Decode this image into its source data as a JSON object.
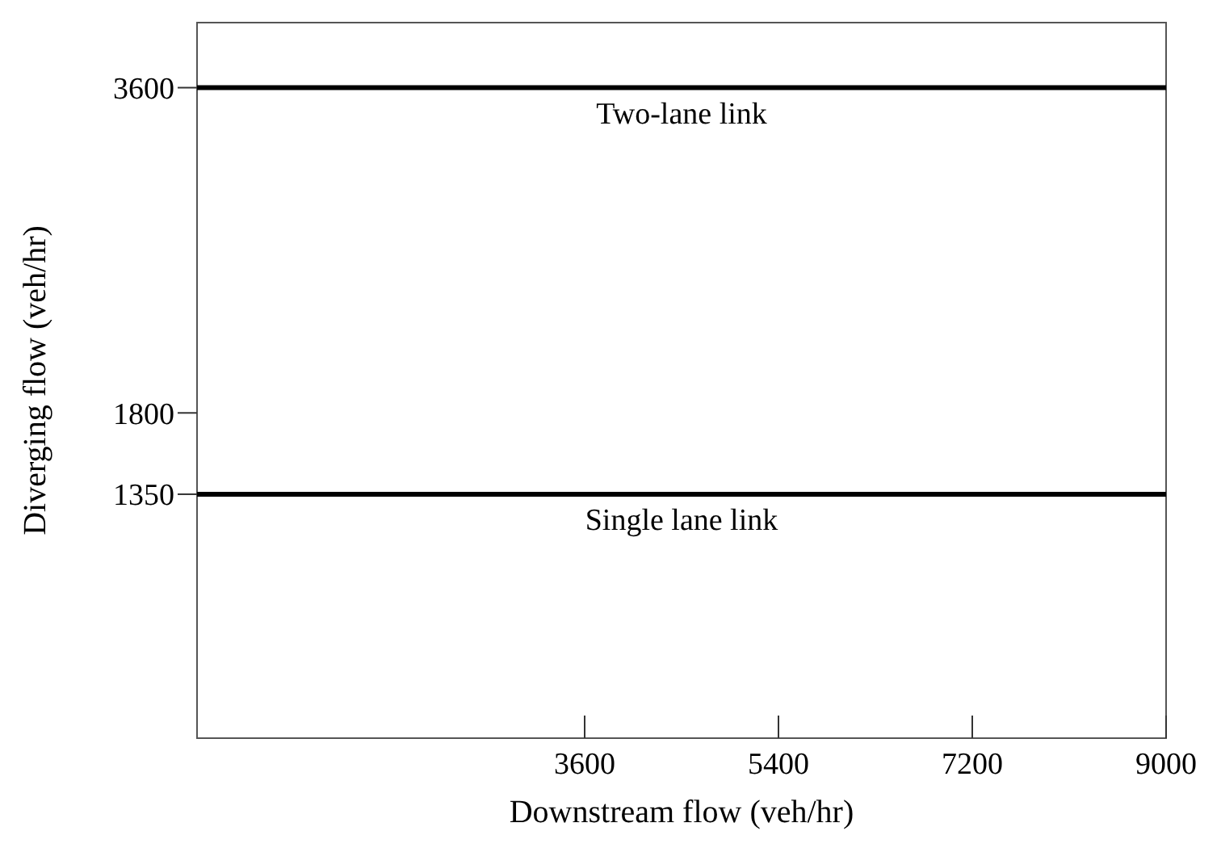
{
  "chart_data": {
    "type": "line",
    "xlabel": "Downstream flow (veh/hr)",
    "ylabel": "Diverging flow (veh/hr)",
    "x": [
      0,
      9000
    ],
    "xlim": [
      0,
      9000
    ],
    "ylim": [
      0,
      3960
    ],
    "xticks": [
      3600,
      5400,
      7200,
      9000
    ],
    "yticks": [
      1350,
      1800,
      3600
    ],
    "grid": false,
    "marker": "none",
    "line_style": "solid",
    "series": [
      {
        "name": "Two-lane link",
        "color": "#000000",
        "values": [
          3600,
          3600
        ]
      },
      {
        "name": "Single lane link",
        "color": "#000000",
        "values": [
          1350,
          1350
        ]
      }
    ]
  }
}
